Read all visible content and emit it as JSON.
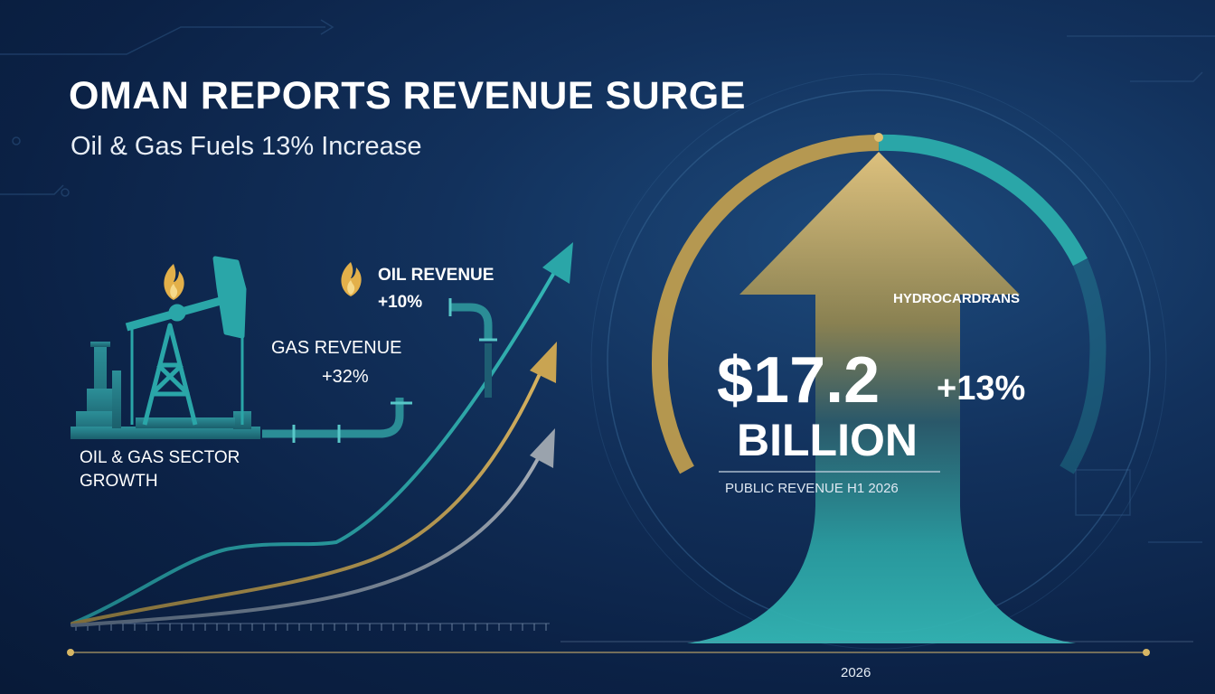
{
  "headline": {
    "title": "OMAN REPORTS REVENUE SURGE",
    "subtitle": "Oil & Gas Fuels 13% Increase"
  },
  "callouts": {
    "oil_label": "OIL REVENUE",
    "oil_value": "+10%",
    "gas_label": "GAS REVENUE",
    "gas_value": "+32%",
    "sector_line1": "OIL & GAS SECTOR",
    "sector_line2": "GROWTH"
  },
  "highlight": {
    "category": "HYDROCARDRANS",
    "amount": "$17.2",
    "change": "+13%",
    "unit": "BILLION",
    "period": "PUBLIC REVENUE H1 2026"
  },
  "timeline": {
    "year": "2026"
  },
  "colors": {
    "teal": "#2aa6a8",
    "gold": "#c8a75a",
    "silver": "#9aa3ad",
    "background": "#0c2244"
  },
  "icons": {
    "flame": "flame-icon",
    "pumpjack": "oil-pumpjack-icon",
    "refinery": "refinery-icon",
    "pipeline": "pipeline-icon"
  }
}
